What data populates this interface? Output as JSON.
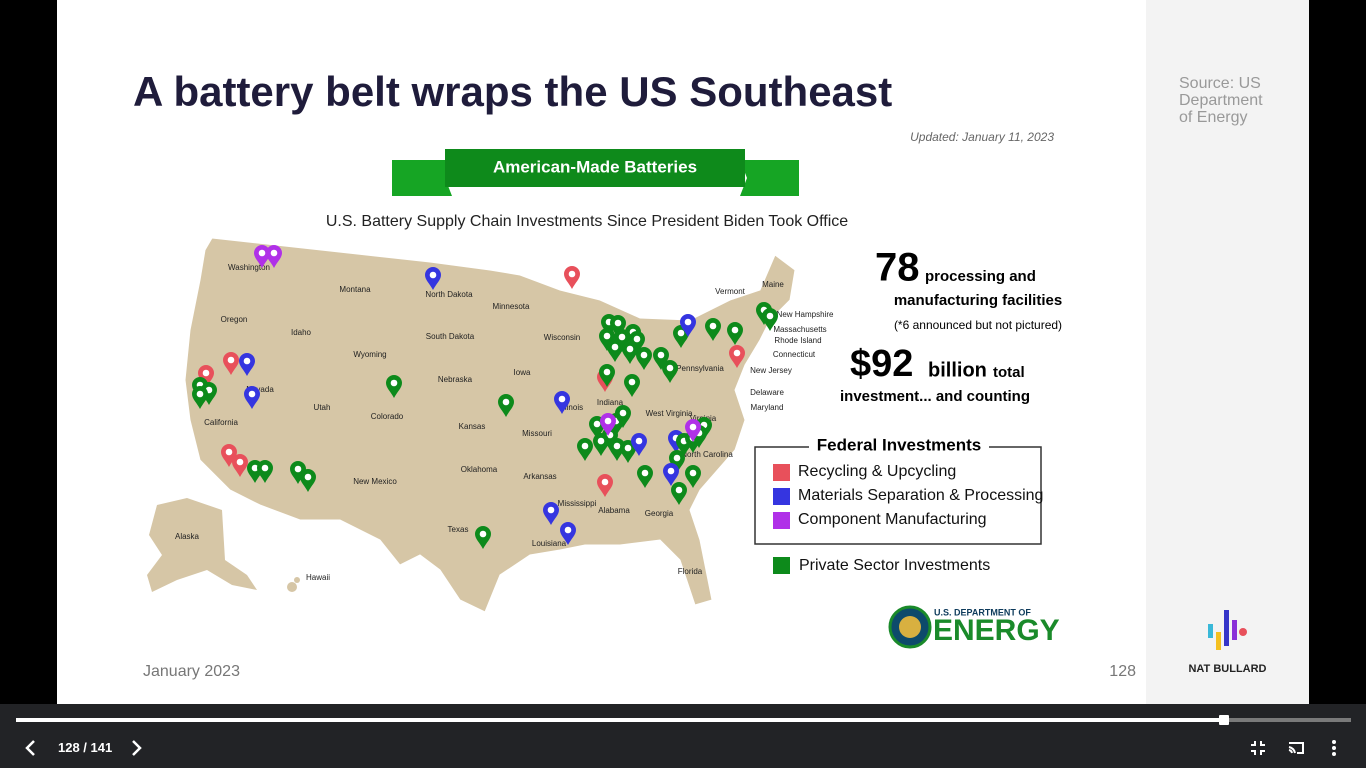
{
  "slide": {
    "title": "A battery belt wraps the US Southeast",
    "date": "January 2023",
    "page_number": "128"
  },
  "sidebar": {
    "source": "Source: US Department of Energy",
    "brand": "NAT BULLARD"
  },
  "infographic": {
    "updated": "Updated: January 11, 2023",
    "banner": "American-Made Batteries",
    "subtitle": "U.S. Battery Supply Chain Investments Since President Biden Took Office",
    "stat1_number": "78",
    "stat1_text_a": "processing and",
    "stat1_text_b": "manufacturing facilities",
    "stat1_note": "(*6 announced but not pictured)",
    "stat2_number": "$92",
    "stat2_unit": "billion",
    "stat2_text_a": "total",
    "stat2_text_b": "investment... and counting",
    "legend": {
      "title": "Federal Investments",
      "items": [
        {
          "label": "Recycling & Upcycling",
          "color": "#e8505b"
        },
        {
          "label": "Materials Separation & Processing",
          "color": "#3535e0"
        },
        {
          "label": "Component Manufacturing",
          "color": "#b030e8"
        }
      ],
      "private": {
        "label": "Private Sector Investments",
        "color": "#0d8a1b"
      }
    },
    "states": [
      "Washington",
      "Oregon",
      "California",
      "Nevada",
      "Idaho",
      "Montana",
      "Wyoming",
      "Utah",
      "Colorado",
      "New Mexico",
      "North Dakota",
      "South Dakota",
      "Nebraska",
      "Kansas",
      "Oklahoma",
      "Texas",
      "Minnesota",
      "Iowa",
      "Missouri",
      "Arkansas",
      "Louisiana",
      "Wisconsin",
      "Illinois",
      "Mississippi",
      "Alabama",
      "Georgia",
      "Florida",
      "Indiana",
      "West Virginia",
      "Virginia",
      "North Carolina",
      "Pennsylvania",
      "Maine",
      "Vermont",
      "New Hampshire",
      "Massachusetts",
      "Rhode Island",
      "Connecticut",
      "New Jersey",
      "Delaware",
      "Maryland",
      "Alaska",
      "Hawaii"
    ],
    "logo": {
      "small": "U.S. DEPARTMENT OF",
      "big": "ENERGY"
    }
  },
  "viewer": {
    "counter": "128 / 141"
  }
}
